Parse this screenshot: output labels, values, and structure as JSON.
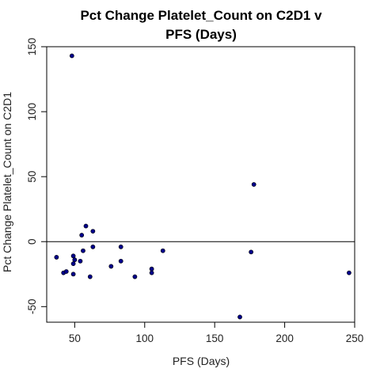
{
  "chart_data": {
    "type": "scatter",
    "title_lines": [
      "Pct Change Platelet_Count on C2D1 v",
      "PFS (Days)"
    ],
    "xlabel": "PFS (Days)",
    "ylabel": "Pct Change Platelet_Count on C2D1",
    "xlim": [
      30,
      250
    ],
    "ylim": [
      -62,
      150
    ],
    "x_ticks": [
      50,
      100,
      150,
      200,
      250
    ],
    "y_ticks": [
      -50,
      0,
      50,
      100,
      150
    ],
    "reference_line_y": 0,
    "point_color": "#00008b",
    "points": [
      {
        "x": 48,
        "y": 143
      },
      {
        "x": 37,
        "y": -12
      },
      {
        "x": 42,
        "y": -24
      },
      {
        "x": 44,
        "y": -23
      },
      {
        "x": 49,
        "y": -11
      },
      {
        "x": 49,
        "y": -17
      },
      {
        "x": 50,
        "y": -14
      },
      {
        "x": 49,
        "y": -25
      },
      {
        "x": 54,
        "y": -15
      },
      {
        "x": 55,
        "y": 5
      },
      {
        "x": 56,
        "y": -7
      },
      {
        "x": 58,
        "y": 12
      },
      {
        "x": 61,
        "y": -27
      },
      {
        "x": 63,
        "y": 8
      },
      {
        "x": 63,
        "y": -4
      },
      {
        "x": 76,
        "y": -19
      },
      {
        "x": 83,
        "y": -4
      },
      {
        "x": 83,
        "y": -15
      },
      {
        "x": 93,
        "y": -27
      },
      {
        "x": 105,
        "y": -21
      },
      {
        "x": 105,
        "y": -24
      },
      {
        "x": 113,
        "y": -7
      },
      {
        "x": 168,
        "y": -58
      },
      {
        "x": 176,
        "y": -8
      },
      {
        "x": 178,
        "y": 44
      },
      {
        "x": 246,
        "y": -24
      }
    ]
  }
}
